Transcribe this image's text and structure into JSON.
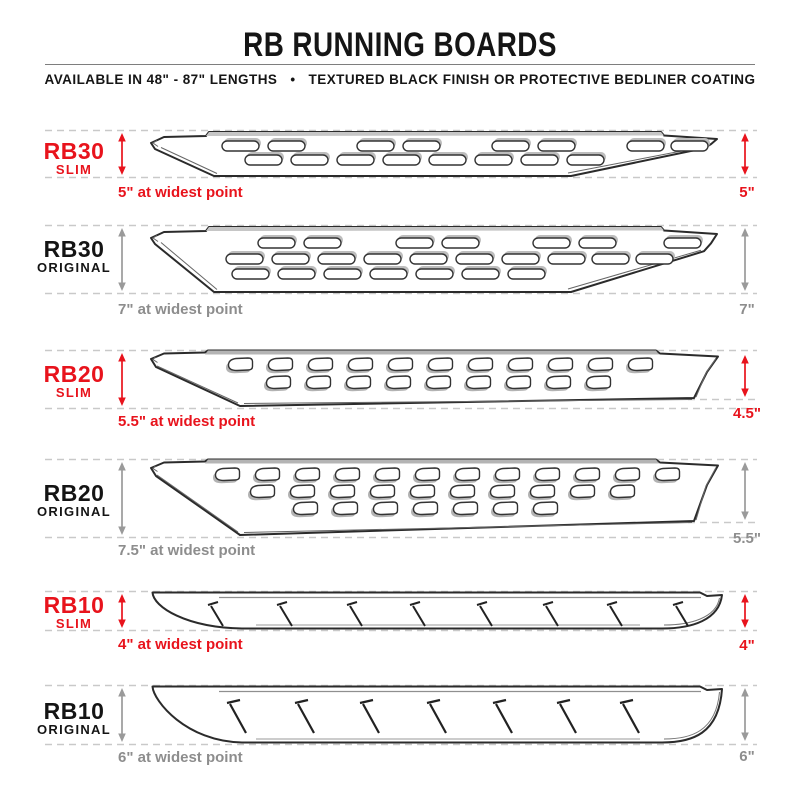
{
  "header": {
    "title": "RB RUNNING BOARDS",
    "subtitle_left": "AVAILABLE IN 48\" - 87\" LENGTHS",
    "subtitle_bullet": "•",
    "subtitle_right": "TEXTURED BLACK FINISH OR PROTECTIVE BEDLINER COATING"
  },
  "colors": {
    "red": "#e8131c",
    "black": "#141414",
    "gray_text": "#8d8d8d",
    "gray_arrow": "#9a9a9a",
    "dash": "#c9c9c9",
    "outline": "#2b2b2b"
  },
  "boards": [
    {
      "model": "RB30",
      "variant": "SLIM",
      "theme": "red",
      "width_caption": "5\" at widest point",
      "height_caption": "5\""
    },
    {
      "model": "RB30",
      "variant": "ORIGINAL",
      "theme": "gray",
      "width_caption": "7\" at widest point",
      "height_caption": "7\""
    },
    {
      "model": "RB20",
      "variant": "SLIM",
      "theme": "red",
      "width_caption": "5.5\" at widest point",
      "height_caption": "4.5\""
    },
    {
      "model": "RB20",
      "variant": "ORIGINAL",
      "theme": "gray",
      "width_caption": "7.5\" at widest point",
      "height_caption": "5.5\""
    },
    {
      "model": "RB10",
      "variant": "SLIM",
      "theme": "red",
      "width_caption": "4\" at widest point",
      "height_caption": "4\""
    },
    {
      "model": "RB10",
      "variant": "ORIGINAL",
      "theme": "gray",
      "width_caption": "6\" at widest point",
      "height_caption": "6\""
    }
  ]
}
